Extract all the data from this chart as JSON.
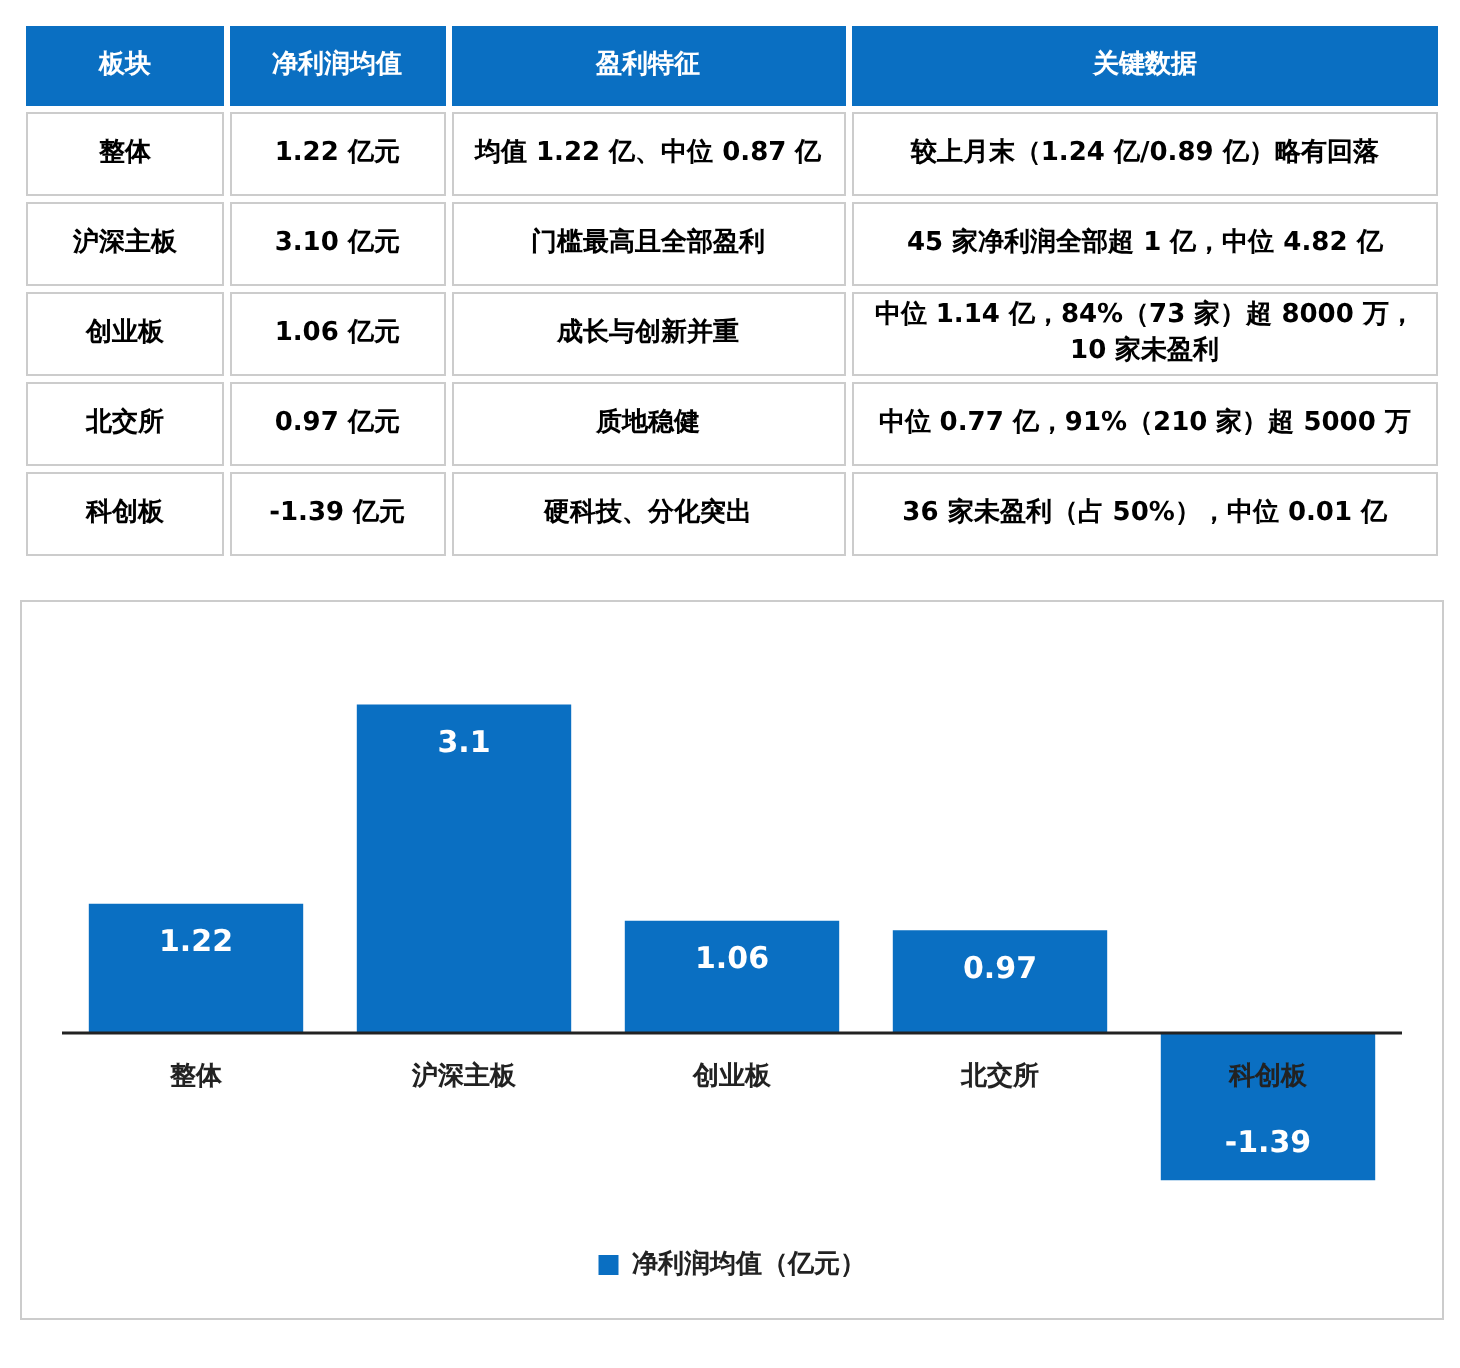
{
  "chart_data": [
    {
      "type": "other",
      "categories": [
        "板块",
        "净利润均值",
        "盈利特征",
        "关键数据"
      ],
      "y_categories": [
        "整体",
        "沪深主板",
        "创业板",
        "北交所",
        "科创板"
      ],
      "cell_labels": [
        [
          "1.22 亿元",
          "均值 1.22 亿、中位 0.87 亿",
          "较上月末（1.24 亿/0.89 亿）略有回落"
        ],
        [
          "3.10 亿元",
          "门槛最高且全部盈利",
          "45 家净利润全部超 1 亿，中位 4.82 亿"
        ],
        [
          "1.06 亿元",
          "成长与创新并重",
          "中位 1.14 亿，84%（73 家）超 8000 万，10 家未盈利"
        ],
        [
          "0.97 亿元",
          "质地稳健",
          "中位 0.77 亿，91%（210 家）超 5000 万"
        ],
        [
          "-1.39 亿元",
          "硬科技、分化突出",
          "36 家未盈利（占 50%），中位 0.01 亿"
        ]
      ],
      "color": "#0a6fc2"
    },
    {
      "type": "bar",
      "categories": [
        "整体",
        "沪深主板",
        "创业板",
        "北交所",
        "科创板"
      ],
      "series": [
        {
          "name": "净利润均值（亿元）",
          "color": "#0a6fc2",
          "values": [
            1.22,
            3.1,
            1.06,
            0.97,
            -1.39
          ]
        }
      ],
      "data_labels": true,
      "legend": "bottom"
    }
  ]
}
